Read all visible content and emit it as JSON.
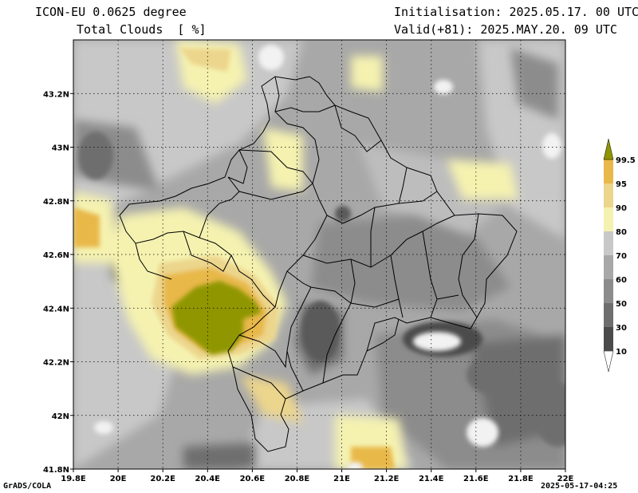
{
  "header": {
    "model": "ICON-EU 0.0625 degree",
    "variable": "Total Clouds  [ %]",
    "init": "Initialisation: 2025.05.17. 00 UTC",
    "valid": "Valid(+81): 2025.MAY.20. 09 UTC"
  },
  "footer": {
    "software": "GrADS/COLA",
    "timestamp": "2025-05-17-04:25"
  },
  "axes": {
    "lon_ticks": [
      "19.8E",
      "20E",
      "20.2E",
      "20.4E",
      "20.6E",
      "20.8E",
      "21E",
      "21.2E",
      "21.4E",
      "21.6E",
      "21.8E",
      "22E"
    ],
    "lon_values": [
      19.8,
      20.0,
      20.2,
      20.4,
      20.6,
      20.8,
      21.0,
      21.2,
      21.4,
      21.6,
      21.8,
      22.0
    ],
    "lat_ticks": [
      "41.8N",
      "42N",
      "42.2N",
      "42.4N",
      "42.6N",
      "42.8N",
      "43N",
      "43.2N"
    ],
    "lat_values": [
      41.8,
      42.0,
      42.2,
      42.4,
      42.6,
      42.8,
      43.0,
      43.2
    ],
    "lon_range": [
      19.8,
      22.0
    ],
    "lat_range": [
      41.8,
      43.4
    ],
    "grid": true
  },
  "colorbar": {
    "labels": [
      "10",
      "30",
      "50",
      "60",
      "70",
      "80",
      "90",
      "95",
      "99.5"
    ],
    "colors": [
      "#4b4b4b",
      "#6e6e6e",
      "#8c8c8c",
      "#a8a8a8",
      "#c8c8c8",
      "#f5f2b0",
      "#ecd58c",
      "#e8b84a",
      "#e2a524",
      "#8f9600"
    ]
  }
}
